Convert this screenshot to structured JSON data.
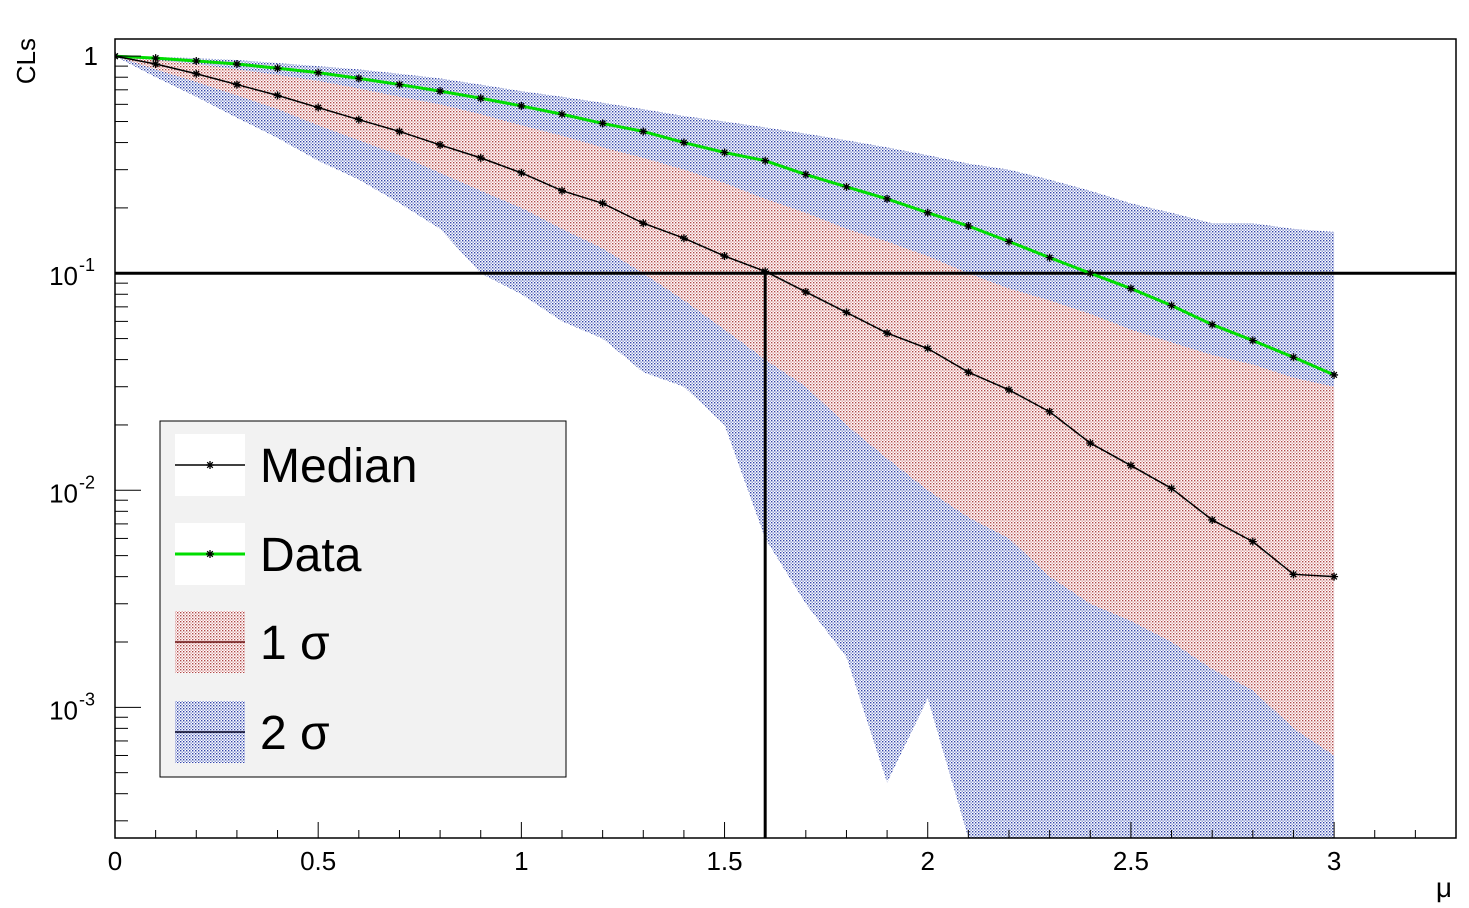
{
  "chart_data": {
    "type": "line",
    "xlabel": "μ",
    "ylabel": "CLs",
    "xlim": [
      0,
      3.3
    ],
    "ylim": [
      0.00025,
      1.2
    ],
    "log_y": true,
    "grid": false,
    "legend_position": "bottom-left",
    "x": [
      0,
      0.1,
      0.2,
      0.3,
      0.4,
      0.5,
      0.6,
      0.7,
      0.8,
      0.9,
      1.0,
      1.1,
      1.2,
      1.3,
      1.4,
      1.5,
      1.6,
      1.7,
      1.8,
      1.9,
      2.0,
      2.1,
      2.2,
      2.3,
      2.4,
      2.5,
      2.6,
      2.7,
      2.8,
      2.9,
      3.0
    ],
    "series": [
      {
        "name": "Median",
        "color": "#000000",
        "values": [
          1.0,
          0.92,
          0.83,
          0.74,
          0.66,
          0.58,
          0.51,
          0.45,
          0.39,
          0.34,
          0.29,
          0.24,
          0.21,
          0.17,
          0.145,
          0.12,
          0.102,
          0.082,
          0.066,
          0.053,
          0.045,
          0.035,
          0.029,
          0.023,
          0.0165,
          0.013,
          0.0102,
          0.0073,
          0.0058,
          0.0041,
          0.004
        ]
      },
      {
        "name": "Data",
        "color": "#00dd00",
        "values": [
          1.0,
          0.98,
          0.95,
          0.92,
          0.88,
          0.84,
          0.79,
          0.74,
          0.69,
          0.64,
          0.59,
          0.54,
          0.49,
          0.45,
          0.4,
          0.36,
          0.33,
          0.285,
          0.25,
          0.22,
          0.19,
          0.165,
          0.14,
          0.118,
          0.1,
          0.085,
          0.071,
          0.058,
          0.049,
          0.041,
          0.034
        ]
      }
    ],
    "bands": [
      {
        "name": "2 σ",
        "color": "#5566bb",
        "lower": [
          1.0,
          0.8,
          0.65,
          0.52,
          0.42,
          0.33,
          0.27,
          0.21,
          0.16,
          0.1,
          0.08,
          0.06,
          0.05,
          0.035,
          0.03,
          0.02,
          0.006,
          0.003,
          0.0017,
          0.00045,
          0.0011,
          0.00025,
          0.00025,
          0.00025,
          0.00025,
          0.00025,
          0.00025,
          0.00025,
          0.00025,
          0.00025,
          0.00025
        ],
        "upper": [
          1.0,
          0.99,
          0.98,
          0.96,
          0.93,
          0.9,
          0.87,
          0.83,
          0.79,
          0.74,
          0.69,
          0.65,
          0.61,
          0.57,
          0.53,
          0.5,
          0.47,
          0.44,
          0.41,
          0.38,
          0.35,
          0.32,
          0.3,
          0.27,
          0.24,
          0.21,
          0.19,
          0.17,
          0.17,
          0.16,
          0.155
        ]
      },
      {
        "name": "1 σ",
        "color": "#cc7777",
        "lower": [
          1.0,
          0.87,
          0.76,
          0.66,
          0.57,
          0.48,
          0.41,
          0.35,
          0.29,
          0.24,
          0.2,
          0.16,
          0.13,
          0.1,
          0.075,
          0.055,
          0.04,
          0.03,
          0.02,
          0.014,
          0.01,
          0.0075,
          0.006,
          0.004,
          0.003,
          0.0025,
          0.002,
          0.0015,
          0.0012,
          0.0008,
          0.0006
        ],
        "upper": [
          1.0,
          0.96,
          0.92,
          0.87,
          0.82,
          0.77,
          0.71,
          0.65,
          0.6,
          0.54,
          0.48,
          0.43,
          0.38,
          0.34,
          0.3,
          0.26,
          0.22,
          0.19,
          0.16,
          0.14,
          0.12,
          0.1,
          0.085,
          0.075,
          0.065,
          0.055,
          0.048,
          0.042,
          0.038,
          0.033,
          0.03
        ]
      }
    ],
    "reference_lines": {
      "horizontal_y": 0.1,
      "vertical_x": 1.6
    },
    "x_ticks": [
      {
        "value": 0,
        "label": "0"
      },
      {
        "value": 0.5,
        "label": "0.5"
      },
      {
        "value": 1,
        "label": "1"
      },
      {
        "value": 1.5,
        "label": "1.5"
      },
      {
        "value": 2,
        "label": "2"
      },
      {
        "value": 2.5,
        "label": "2.5"
      },
      {
        "value": 3,
        "label": "3"
      }
    ],
    "y_ticks": [
      {
        "value": 1,
        "base": "1",
        "exp": ""
      },
      {
        "value": 0.1,
        "base": "10",
        "exp": "-1"
      },
      {
        "value": 0.01,
        "base": "10",
        "exp": "-2"
      },
      {
        "value": 0.001,
        "base": "10",
        "exp": "-3"
      }
    ],
    "legend": [
      {
        "label": "Median",
        "kind": "median"
      },
      {
        "label": "Data",
        "kind": "data"
      },
      {
        "label": "1 σ",
        "kind": "band1"
      },
      {
        "label": "2 σ",
        "kind": "band2"
      }
    ]
  }
}
